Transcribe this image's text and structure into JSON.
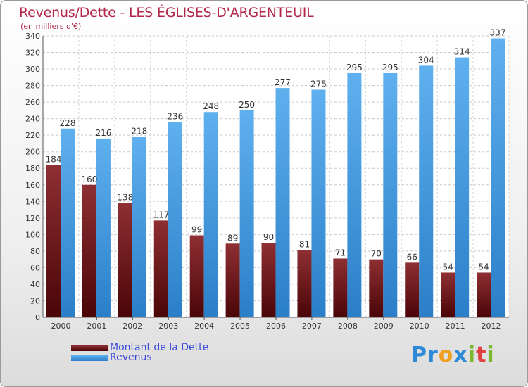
{
  "title": "Revenus/Dette - LES ÉGLISES-D'ARGENTEUIL",
  "subtitle": "(en milliers d'€)",
  "colors": {
    "dette_dark": "#5e0a0e",
    "dette_light": "#8e2f33",
    "revenus_dark": "#2f86d0",
    "revenus_light": "#5fb0ee",
    "title": "#b22749",
    "legend_text": "#3a4ad8"
  },
  "chart_data": {
    "type": "bar",
    "categories": [
      "2000",
      "2001",
      "2002",
      "2003",
      "2004",
      "2005",
      "2006",
      "2007",
      "2008",
      "2009",
      "2010",
      "2011",
      "2012"
    ],
    "series": [
      {
        "name": "Montant de la Dette",
        "values": [
          184,
          160,
          138,
          117,
          99,
          89,
          90,
          81,
          71,
          70,
          66,
          54,
          54
        ]
      },
      {
        "name": "Revenus",
        "values": [
          228,
          216,
          218,
          236,
          248,
          250,
          277,
          275,
          295,
          295,
          304,
          314,
          337
        ]
      }
    ],
    "ylim": [
      0,
      340
    ],
    "ytick_step": 20,
    "grid": true,
    "legend_position": "bottom-left"
  },
  "legend": [
    {
      "label": "Montant de la Dette"
    },
    {
      "label": "Revenus"
    }
  ],
  "logo": {
    "text": "Proxiti",
    "letters": [
      {
        "ch": "P",
        "color": "#2e8ad6"
      },
      {
        "ch": "r",
        "color": "#2e8ad6"
      },
      {
        "ch": "o",
        "color": "#f0a020"
      },
      {
        "ch": "x",
        "color": "#2e8ad6"
      },
      {
        "ch": "i",
        "color": "#7ab82e"
      },
      {
        "ch": "t",
        "color": "#e04040"
      },
      {
        "ch": "i",
        "color": "#7ab82e"
      }
    ]
  }
}
